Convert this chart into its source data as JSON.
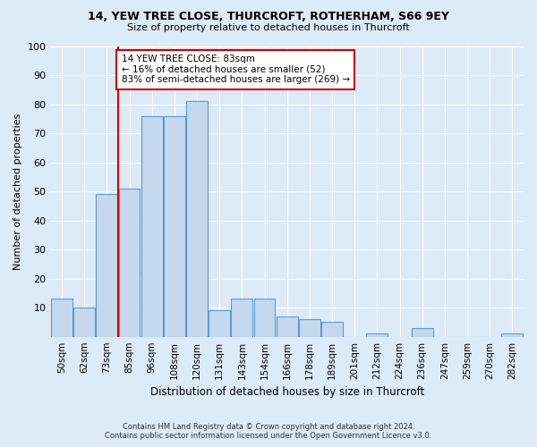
{
  "title_line1": "14, YEW TREE CLOSE, THURCROFT, ROTHERHAM, S66 9EY",
  "title_line2": "Size of property relative to detached houses in Thurcroft",
  "xlabel": "Distribution of detached houses by size in Thurcroft",
  "ylabel": "Number of detached properties",
  "footnote": "Contains HM Land Registry data © Crown copyright and database right 2024.\nContains public sector information licensed under the Open Government Licence v3.0.",
  "categories": [
    "50sqm",
    "62sqm",
    "73sqm",
    "85sqm",
    "96sqm",
    "108sqm",
    "120sqm",
    "131sqm",
    "143sqm",
    "154sqm",
    "166sqm",
    "178sqm",
    "189sqm",
    "201sqm",
    "212sqm",
    "224sqm",
    "236sqm",
    "247sqm",
    "259sqm",
    "270sqm",
    "282sqm"
  ],
  "values": [
    13,
    10,
    49,
    51,
    76,
    76,
    81,
    9,
    13,
    13,
    7,
    6,
    5,
    0,
    1,
    0,
    3,
    0,
    0,
    0,
    1
  ],
  "bar_color": "#c5d8ed",
  "bar_edge_color": "#5b9bd5",
  "annotation_text": "14 YEW TREE CLOSE: 83sqm\n← 16% of detached houses are smaller (52)\n83% of semi-detached houses are larger (269) →",
  "annotation_box_color": "#ffffff",
  "annotation_box_edge": "#cc0000",
  "vline_color": "#cc0000",
  "background_color": "#ddeaf7",
  "grid_color": "#ffffff",
  "ylim": [
    0,
    100
  ],
  "yticks": [
    0,
    10,
    20,
    30,
    40,
    50,
    60,
    70,
    80,
    90,
    100
  ],
  "vline_pos": 2.5,
  "figsize": [
    6.0,
    5.0
  ],
  "dpi": 100
}
